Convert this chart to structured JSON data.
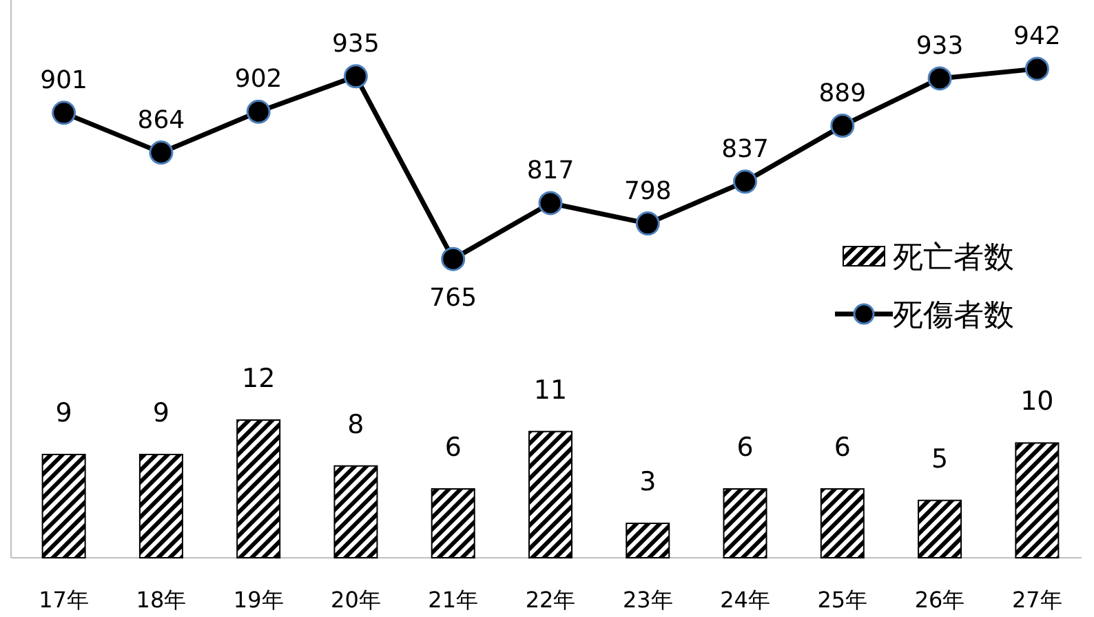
{
  "chart_data": {
    "type": "bar",
    "categories": [
      "17年",
      "18年",
      "19年",
      "20年",
      "21年",
      "22年",
      "23年",
      "24年",
      "25年",
      "26年",
      "27年"
    ],
    "data_labels": true,
    "legend": "right",
    "marker": "circle",
    "ylim": [
      0,
      48.6
    ],
    "y2lim": [
      487,
      1006
    ],
    "tick_labels": "x",
    "series": [
      {
        "name": "死亡者数",
        "color": "#000000",
        "values": [
          9,
          9,
          12,
          8,
          6,
          11,
          3,
          6,
          6,
          5,
          10
        ]
      },
      {
        "name": "死傷者数",
        "type": "line",
        "axis": "y2",
        "color": "#000000",
        "values": [
          901,
          864,
          902,
          935,
          765,
          817,
          798,
          837,
          889,
          933,
          942
        ]
      }
    ]
  }
}
